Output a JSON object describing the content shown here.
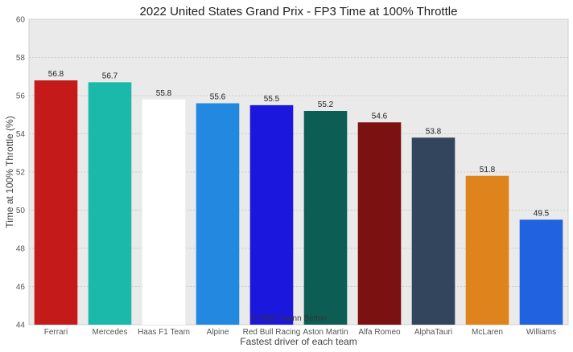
{
  "chart_data": {
    "type": "bar",
    "title": "2022 United States Grand Prix - FP3 Time at 100% Throttle",
    "xlabel": "Fastest driver of each team",
    "ylabel": "Time at 100% Throttle (%)",
    "ylim": [
      44,
      60
    ],
    "yticks": [
      44,
      46,
      48,
      50,
      52,
      54,
      56,
      58,
      60
    ],
    "grid": "horizontal",
    "categories": [
      "Ferrari",
      "Mercedes",
      "Haas F1 Team",
      "Alpine",
      "Red Bull Racing",
      "Aston Martin",
      "Alfa Romeo",
      "AlphaTauri",
      "McLaren",
      "Williams"
    ],
    "values": [
      56.8,
      56.7,
      55.8,
      55.6,
      55.5,
      55.2,
      54.6,
      53.8,
      51.8,
      49.5
    ],
    "data_labels": [
      "56.8",
      "56.7",
      "55.8",
      "55.6",
      "55.5",
      "55.2",
      "54.6",
      "53.8",
      "51.8",
      "49.5"
    ],
    "colors": [
      "#c41a1a",
      "#1ab9a9",
      "#ffffff",
      "#2288e0",
      "#1c17dd",
      "#0c5e55",
      "#7b1111",
      "#33455c",
      "#df831c",
      "#2062e0"
    ],
    "watermark": "© 2022 Yoann Betton"
  }
}
